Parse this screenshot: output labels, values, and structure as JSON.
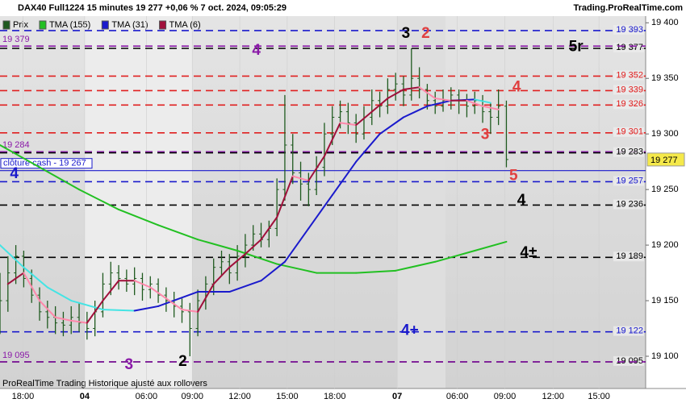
{
  "chart_data": {
    "type": "ohlc",
    "title": "DAX40 Full1224 15 minutes 19 277 +0,06 % 7 oct. 2024, 09:05:29",
    "source": "Trading.ProRealTime.com",
    "footer": "ProRealTime Trading  Historique ajusté aux rollovers",
    "price_name": "Prix",
    "price_color": "#1f5a1f",
    "xlim": [
      0,
      81.6
    ],
    "xticks": [
      {
        "value": 2.9,
        "label": "18:00"
      },
      {
        "value": 10.7,
        "label": "04"
      },
      {
        "value": 18.5,
        "label": "06:00"
      },
      {
        "value": 24.3,
        "label": "09:00"
      },
      {
        "value": 30.3,
        "label": "12:00"
      },
      {
        "value": 36.3,
        "label": "15:00"
      },
      {
        "value": 42.3,
        "label": "18:00"
      },
      {
        "value": 50.2,
        "label": "07"
      },
      {
        "value": 57.8,
        "label": "06:00"
      },
      {
        "value": 63.8,
        "label": "09:00"
      },
      {
        "value": 69.9,
        "label": "12:00"
      },
      {
        "value": 75.7,
        "label": "15:00"
      }
    ],
    "ylim": [
      19071,
      19406
    ],
    "yticks": [
      {
        "value": 19100,
        "label": "19 100"
      },
      {
        "value": 19150,
        "label": "19 150"
      },
      {
        "value": 19200,
        "label": "19 200"
      },
      {
        "value": 19250,
        "label": "19 250"
      },
      {
        "value": 19300,
        "label": "19 300"
      },
      {
        "value": 19350,
        "label": "19 350"
      },
      {
        "value": 19400,
        "label": "19 400"
      }
    ],
    "ohlc": {
      "x": [
        0,
        1,
        2,
        3,
        4,
        5,
        6,
        7,
        8,
        9,
        10,
        11,
        12,
        13,
        14,
        15,
        16,
        17,
        18,
        19,
        20,
        21,
        22,
        23,
        24,
        25,
        26,
        27,
        28,
        29,
        30,
        31,
        32,
        33,
        34,
        35,
        36,
        37,
        38,
        39,
        40,
        41,
        42,
        43,
        44,
        45,
        46,
        47,
        48,
        49,
        50,
        51,
        52,
        53,
        54,
        55,
        56,
        57,
        58,
        59,
        60,
        61,
        62,
        63,
        64
      ],
      "open": [
        19160,
        19150,
        19175,
        19190,
        19170,
        19155,
        19140,
        19135,
        19130,
        19128,
        19135,
        19130,
        19125,
        19140,
        19165,
        19175,
        19170,
        19165,
        19170,
        19160,
        19165,
        19155,
        19150,
        19145,
        19140,
        19125,
        19150,
        19165,
        19180,
        19185,
        19175,
        19190,
        19200,
        19210,
        19205,
        19215,
        19250,
        19290,
        19265,
        19255,
        19250,
        19270,
        19300,
        19315,
        19320,
        19310,
        19300,
        19315,
        19330,
        19325,
        19340,
        19345,
        19335,
        19350,
        19340,
        19330,
        19325,
        19330,
        19335,
        19330,
        19325,
        19330,
        19320,
        19315,
        19325
      ],
      "high": [
        19175,
        19190,
        19200,
        19195,
        19178,
        19162,
        19150,
        19145,
        19140,
        19145,
        19148,
        19140,
        19150,
        19175,
        19185,
        19182,
        19178,
        19180,
        19175,
        19172,
        19170,
        19162,
        19158,
        19152,
        19148,
        19160,
        19172,
        19188,
        19195,
        19192,
        19200,
        19210,
        19218,
        19220,
        19222,
        19260,
        19335,
        19300,
        19275,
        19265,
        19280,
        19310,
        19325,
        19330,
        19328,
        19318,
        19325,
        19340,
        19338,
        19350,
        19355,
        19352,
        19377,
        19360,
        19345,
        19338,
        19340,
        19342,
        19340,
        19336,
        19338,
        19335,
        19328,
        19340,
        19330
      ],
      "low": [
        19120,
        19140,
        19165,
        19162,
        19148,
        19132,
        19125,
        19120,
        19118,
        19120,
        19122,
        19115,
        19118,
        19135,
        19155,
        19160,
        19158,
        19155,
        19150,
        19152,
        19148,
        19140,
        19135,
        19130,
        19100,
        19118,
        19142,
        19155,
        19172,
        19165,
        19168,
        19180,
        19195,
        19198,
        19198,
        19208,
        19240,
        19255,
        19240,
        19235,
        19245,
        19262,
        19290,
        19305,
        19300,
        19292,
        19295,
        19308,
        19315,
        19318,
        19330,
        19325,
        19330,
        19332,
        19322,
        19318,
        19320,
        19322,
        19318,
        19315,
        19318,
        19310,
        19300,
        19308,
        19270
      ],
      "close": [
        19150,
        19175,
        19190,
        19170,
        19155,
        19140,
        19135,
        19130,
        19128,
        19135,
        19130,
        19125,
        19140,
        19165,
        19175,
        19170,
        19165,
        19170,
        19160,
        19165,
        19155,
        19150,
        19145,
        19140,
        19125,
        19150,
        19165,
        19180,
        19185,
        19175,
        19190,
        19200,
        19210,
        19205,
        19215,
        19250,
        19290,
        19265,
        19255,
        19250,
        19270,
        19300,
        19315,
        19320,
        19310,
        19300,
        19315,
        19330,
        19325,
        19340,
        19345,
        19335,
        19350,
        19340,
        19330,
        19325,
        19330,
        19335,
        19330,
        19325,
        19330,
        19320,
        19315,
        19325,
        19277
      ]
    },
    "series": [
      {
        "name": "TMA (155)",
        "color": "#22c022",
        "down_color": "#22c022",
        "x": [
          0,
          5,
          10,
          15,
          20,
          25,
          30,
          35,
          40,
          45,
          50,
          55,
          60,
          64
        ],
        "values": [
          19290,
          19270,
          19250,
          19232,
          19218,
          19205,
          19195,
          19183,
          19175,
          19175,
          19177,
          19185,
          19195,
          19203
        ]
      },
      {
        "name": "TMA (31)",
        "color": "#1a1acc",
        "down_color": "#44e4e4",
        "x": [
          0,
          3,
          6,
          9,
          13,
          17,
          20,
          25,
          29,
          33,
          36,
          39,
          42,
          45,
          48,
          51,
          54,
          57,
          60,
          62
        ],
        "values": [
          19200,
          19180,
          19162,
          19150,
          19142,
          19141,
          19145,
          19158,
          19158,
          19168,
          19185,
          19215,
          19245,
          19275,
          19300,
          19315,
          19325,
          19330,
          19331,
          19328
        ]
      },
      {
        "name": "TMA (6)",
        "color": "#a0103a",
        "down_color": "#ff88aa",
        "x": [
          1,
          3,
          5,
          7,
          9,
          11,
          13,
          15,
          17,
          19,
          21,
          23,
          25,
          27,
          29,
          31,
          33,
          35,
          37,
          39,
          41,
          43,
          45,
          47,
          49,
          51,
          53,
          55,
          57,
          59,
          61,
          63
        ],
        "values": [
          19165,
          19175,
          19150,
          19135,
          19132,
          19130,
          19150,
          19168,
          19168,
          19162,
          19152,
          19142,
          19140,
          19165,
          19180,
          19192,
          19205,
          19225,
          19262,
          19258,
          19280,
          19310,
          19308,
          19320,
          19332,
          19340,
          19342,
          19332,
          19330,
          19330,
          19325,
          19322
        ]
      }
    ],
    "levels": [
      {
        "value": 19393,
        "color": "#1a1acc",
        "style": "dashed",
        "side": "right",
        "label": "19 393"
      },
      {
        "value": 19377,
        "color": "#000000",
        "style": "dashed",
        "side": "right",
        "label": "19 377"
      },
      {
        "value": 19379,
        "color": "#8a1aa8",
        "style": "dashed",
        "side": "left",
        "label": "19 379"
      },
      {
        "value": 19352,
        "color": "#e02020",
        "style": "dashed",
        "side": "right",
        "label": "19 352"
      },
      {
        "value": 19339,
        "color": "#e02020",
        "style": "dashed",
        "side": "right",
        "label": "19 339"
      },
      {
        "value": 19326,
        "color": "#e02020",
        "style": "dashed",
        "side": "right",
        "label": "19 326"
      },
      {
        "value": 19301,
        "color": "#e02020",
        "style": "dashed",
        "side": "right",
        "label": "19 301"
      },
      {
        "value": 19284,
        "color": "#8a1aa8",
        "style": "dashed",
        "side": "left",
        "label": "19 284"
      },
      {
        "value": 19283,
        "color": "#000000",
        "style": "dashed",
        "side": "right",
        "label": "19 283"
      },
      {
        "value": 19267,
        "color": "#1a1acc",
        "style": "solid",
        "side": "box",
        "label": "clôture cash -  19 267"
      },
      {
        "value": 19257,
        "color": "#1a1acc",
        "style": "dashed",
        "side": "right",
        "label": "19 257"
      },
      {
        "value": 19236,
        "color": "#000000",
        "style": "dashed",
        "side": "right",
        "label": "19 236"
      },
      {
        "value": 19189,
        "color": "#000000",
        "style": "dashed",
        "side": "right",
        "label": "19 189"
      },
      {
        "value": 19122,
        "color": "#1a1acc",
        "style": "dashed",
        "side": "right",
        "label": "19 122"
      },
      {
        "value": 19095,
        "color": "#000000",
        "style": "dashed",
        "side": "right",
        "label": "19 095"
      },
      {
        "value": 19095,
        "color": "#8a1aa8",
        "style": "dashed",
        "side": "left",
        "label": "19 095"
      }
    ],
    "last_price": {
      "value": 19277,
      "label": "19 277"
    },
    "annotations": [
      {
        "text": "4",
        "x": 32.4,
        "y": 19375,
        "color": "#8a1aa8"
      },
      {
        "text": "3",
        "x": 51.3,
        "y": 19390,
        "color": "#000000"
      },
      {
        "text": "2",
        "x": 53.8,
        "y": 19390,
        "color": "#e04040"
      },
      {
        "text": "5r",
        "x": 72.8,
        "y": 19378,
        "color": "#000000"
      },
      {
        "text": "4",
        "x": 65.3,
        "y": 19342,
        "color": "#e04040"
      },
      {
        "text": "3",
        "x": 61.3,
        "y": 19299,
        "color": "#e04040"
      },
      {
        "text": "5",
        "x": 64.9,
        "y": 19262,
        "color": "#e04040"
      },
      {
        "text": "4",
        "x": 1.8,
        "y": 19264,
        "color": "#1a1acc"
      },
      {
        "text": "4",
        "x": 65.9,
        "y": 19240,
        "color": "#000000"
      },
      {
        "text": "4±",
        "x": 66.8,
        "y": 19193,
        "color": "#000000"
      },
      {
        "text": "4+",
        "x": 51.8,
        "y": 19123,
        "color": "#1a1acc"
      },
      {
        "text": "3",
        "x": 16.3,
        "y": 19092,
        "color": "#8a1aa8"
      },
      {
        "text": "2",
        "x": 23.1,
        "y": 19095,
        "color": "#000000"
      }
    ]
  }
}
